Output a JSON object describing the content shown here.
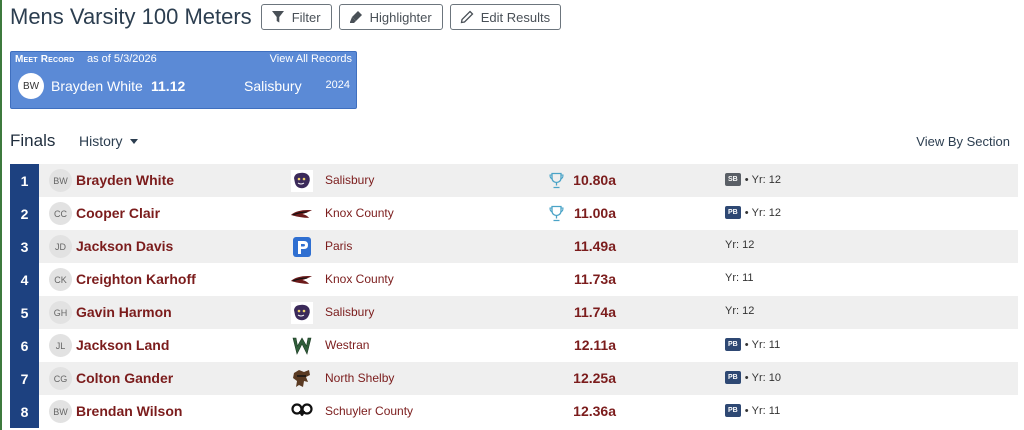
{
  "header": {
    "title": "Mens Varsity 100 Meters",
    "buttons": [
      {
        "label": "Filter",
        "icon": "filter-icon"
      },
      {
        "label": "Highlighter",
        "icon": "highlighter-icon"
      },
      {
        "label": "Edit Results",
        "icon": "pencil-icon"
      }
    ]
  },
  "meet_record": {
    "label": "Meet Record",
    "as_of": "as of 5/3/2026",
    "view_all": "View All Records",
    "initials": "BW",
    "name": "Brayden White",
    "mark": "11.12",
    "team": "Salisbury",
    "year": "2024"
  },
  "section": {
    "title": "Finals",
    "history_label": "History",
    "view_by_section": "View By Section"
  },
  "results": [
    {
      "place": "1",
      "initials": "BW",
      "name": "Brayden White",
      "team": "Salisbury",
      "logo": "salisbury-panther-logo",
      "mark": "10.80a",
      "trophy": true,
      "badge": "SB",
      "year": "Yr: 12"
    },
    {
      "place": "2",
      "initials": "CC",
      "name": "Cooper Clair",
      "team": "Knox County",
      "logo": "knox-county-eagle-logo",
      "mark": "11.00a",
      "trophy": true,
      "badge": "PB",
      "year": "Yr: 12"
    },
    {
      "place": "3",
      "initials": "JD",
      "name": "Jackson Davis",
      "team": "Paris",
      "logo": "paris-p-logo",
      "mark": "11.49a",
      "trophy": false,
      "badge": "",
      "year": "Yr: 12"
    },
    {
      "place": "4",
      "initials": "CK",
      "name": "Creighton Karhoff",
      "team": "Knox County",
      "logo": "knox-county-eagle-logo",
      "mark": "11.73a",
      "trophy": false,
      "badge": "",
      "year": "Yr: 11"
    },
    {
      "place": "5",
      "initials": "GH",
      "name": "Gavin Harmon",
      "team": "Salisbury",
      "logo": "salisbury-panther-logo",
      "mark": "11.74a",
      "trophy": false,
      "badge": "",
      "year": "Yr: 12"
    },
    {
      "place": "6",
      "initials": "JL",
      "name": "Jackson Land",
      "team": "Westran",
      "logo": "westran-w-logo",
      "mark": "12.11a",
      "trophy": false,
      "badge": "PB",
      "year": "Yr: 11"
    },
    {
      "place": "7",
      "initials": "CG",
      "name": "Colton Gander",
      "team": "North Shelby",
      "logo": "north-shelby-raider-logo",
      "mark": "12.25a",
      "trophy": false,
      "badge": "PB",
      "year": "Yr: 10"
    },
    {
      "place": "8",
      "initials": "BW",
      "name": "Brendan Wilson",
      "team": "Schuyler County",
      "logo": "schuyler-county-ram-logo",
      "mark": "12.36a",
      "trophy": false,
      "badge": "PB",
      "year": "Yr: 11"
    }
  ],
  "colors": {
    "place_bg": "#1d4180",
    "record_bg": "#5b8ad6",
    "name_text": "#7b1c1c",
    "pb_badge": "#2e4873",
    "sb_badge": "#5a5f66"
  }
}
